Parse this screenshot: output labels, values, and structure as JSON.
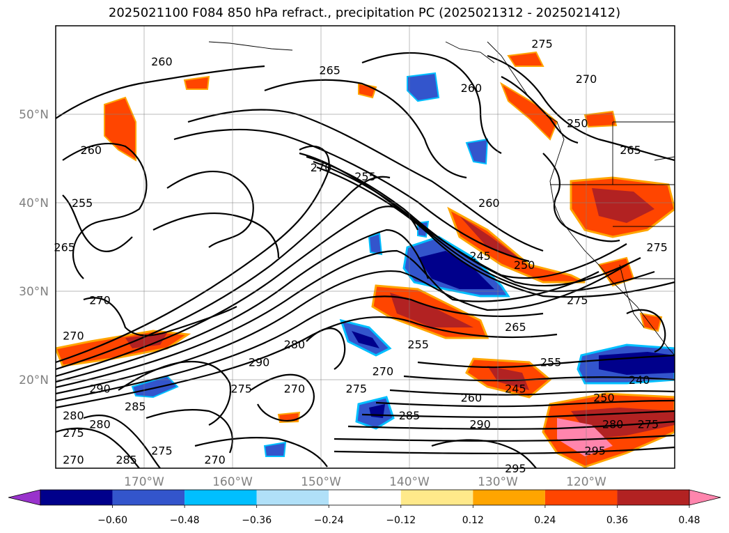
{
  "chart_data": {
    "type": "heatmap",
    "title": "2025021100 F084 850 hPa refract., precipitation PC (2025021312 - 2025021412)",
    "map": {
      "lon_range": [
        -180,
        -110
      ],
      "lat_range": [
        10,
        60
      ],
      "lon_ticks": [
        -170,
        -160,
        -150,
        -140,
        -130,
        -120
      ],
      "lon_tick_labels": [
        "170°W",
        "160°W",
        "150°W",
        "140°W",
        "130°W",
        "120°W"
      ],
      "lat_ticks": [
        20,
        30,
        40,
        50
      ],
      "lat_tick_labels": [
        "20°N",
        "30°N",
        "40°N",
        "50°N"
      ],
      "grid": true
    },
    "colorbar": {
      "ticks": [
        -0.6,
        -0.48,
        -0.36,
        -0.24,
        -0.12,
        0.12,
        0.24,
        0.36,
        0.48,
        0.6
      ],
      "tick_labels": [
        "−0.60",
        "−0.48",
        "−0.36",
        "−0.24",
        "−0.12",
        "0.12",
        "0.24",
        "0.36",
        "0.48",
        "0.60"
      ],
      "colors": [
        "#9933cc",
        "#00008b",
        "#3355cc",
        "#00bfff",
        "#b0e0f8",
        "#ffffff",
        "#ffe98a",
        "#ffa500",
        "#ff4500",
        "#b22222",
        "#ff85ad"
      ],
      "extend": "both",
      "placement": "bottom"
    },
    "contour_labels": [
      {
        "text": "260",
        "lon": -168,
        "lat": 56
      },
      {
        "text": "265",
        "lon": -149,
        "lat": 55
      },
      {
        "text": "275",
        "lon": -125,
        "lat": 58
      },
      {
        "text": "270",
        "lon": -120,
        "lat": 54
      },
      {
        "text": "260",
        "lon": -133,
        "lat": 53
      },
      {
        "text": "250",
        "lon": -121,
        "lat": 49
      },
      {
        "text": "265",
        "lon": -115,
        "lat": 46
      },
      {
        "text": "260",
        "lon": -176,
        "lat": 46
      },
      {
        "text": "270",
        "lon": -150,
        "lat": 44
      },
      {
        "text": "255",
        "lon": -145,
        "lat": 43
      },
      {
        "text": "260",
        "lon": -131,
        "lat": 40
      },
      {
        "text": "255",
        "lon": -177,
        "lat": 40
      },
      {
        "text": "265",
        "lon": -179,
        "lat": 35
      },
      {
        "text": "245",
        "lon": -132,
        "lat": 34
      },
      {
        "text": "250",
        "lon": -127,
        "lat": 33
      },
      {
        "text": "275",
        "lon": -121,
        "lat": 29
      },
      {
        "text": "275",
        "lon": -112,
        "lat": 35
      },
      {
        "text": "270",
        "lon": -175,
        "lat": 29
      },
      {
        "text": "270",
        "lon": -178,
        "lat": 25
      },
      {
        "text": "265",
        "lon": -128,
        "lat": 26
      },
      {
        "text": "255",
        "lon": -139,
        "lat": 24
      },
      {
        "text": "280",
        "lon": -153,
        "lat": 24
      },
      {
        "text": "290",
        "lon": -157,
        "lat": 22
      },
      {
        "text": "270",
        "lon": -143,
        "lat": 21
      },
      {
        "text": "255",
        "lon": -124,
        "lat": 22
      },
      {
        "text": "245",
        "lon": -128,
        "lat": 19
      },
      {
        "text": "240",
        "lon": -114,
        "lat": 20
      },
      {
        "text": "275",
        "lon": -159,
        "lat": 19
      },
      {
        "text": "270",
        "lon": -153,
        "lat": 19
      },
      {
        "text": "275",
        "lon": -146,
        "lat": 19
      },
      {
        "text": "290",
        "lon": -175,
        "lat": 19
      },
      {
        "text": "285",
        "lon": -171,
        "lat": 17
      },
      {
        "text": "260",
        "lon": -133,
        "lat": 18
      },
      {
        "text": "250",
        "lon": -118,
        "lat": 18
      },
      {
        "text": "285",
        "lon": -140,
        "lat": 16
      },
      {
        "text": "280",
        "lon": -178,
        "lat": 16
      },
      {
        "text": "280",
        "lon": -175,
        "lat": 15
      },
      {
        "text": "280",
        "lon": -117,
        "lat": 15
      },
      {
        "text": "275",
        "lon": -113,
        "lat": 15
      },
      {
        "text": "290",
        "lon": -132,
        "lat": 15
      },
      {
        "text": "275",
        "lon": -178,
        "lat": 14
      },
      {
        "text": "275",
        "lon": -168,
        "lat": 12
      },
      {
        "text": "285",
        "lon": -172,
        "lat": 11
      },
      {
        "text": "295",
        "lon": -119,
        "lat": 12
      },
      {
        "text": "270",
        "lon": -178,
        "lat": 11
      },
      {
        "text": "270",
        "lon": -162,
        "lat": 11
      },
      {
        "text": "295",
        "lon": -128,
        "lat": 10
      }
    ]
  }
}
